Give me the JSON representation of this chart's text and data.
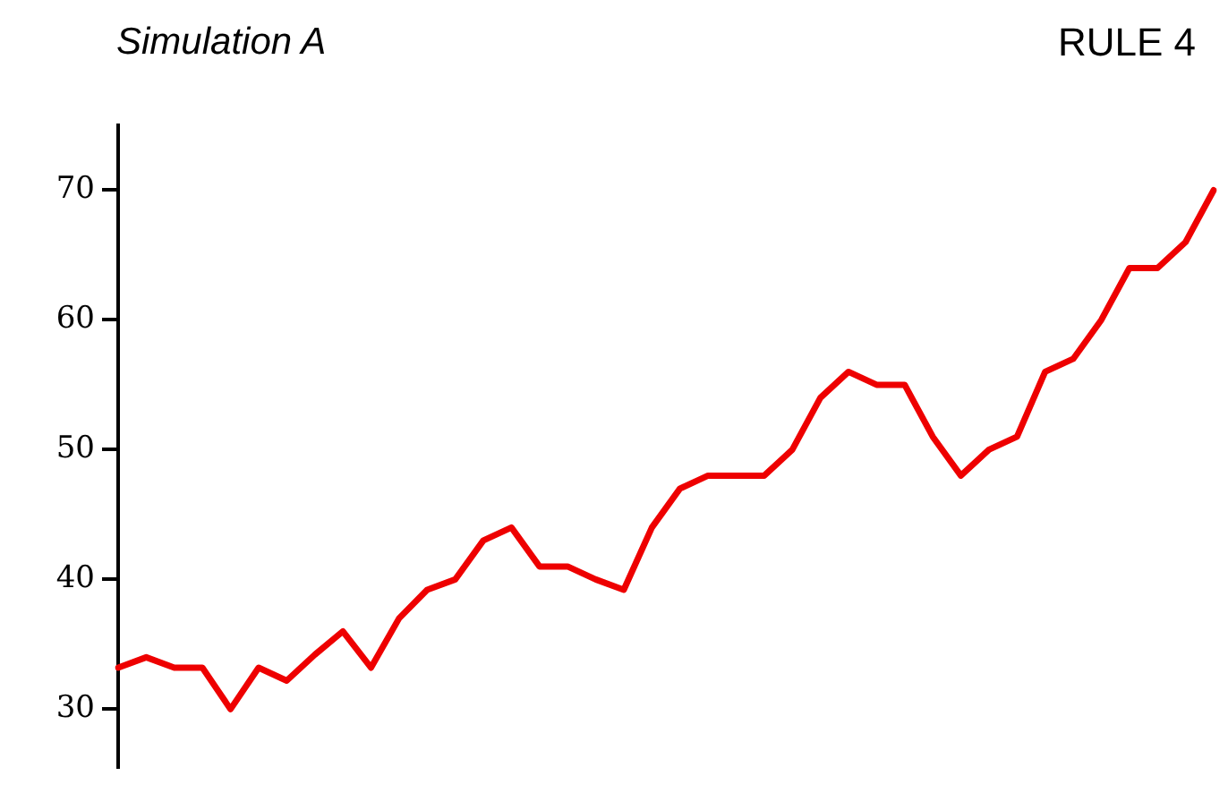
{
  "chart_data": {
    "type": "line",
    "title": "Simulation A",
    "subtitle": "RULE 4",
    "categories": [
      null,
      null,
      null,
      null,
      null,
      null,
      null,
      null,
      null,
      null,
      null,
      null,
      null,
      null,
      null,
      null,
      null,
      null,
      null,
      null,
      null,
      null,
      null,
      null,
      null,
      null,
      null,
      null,
      null,
      null,
      null,
      null,
      null,
      null,
      null,
      null,
      null,
      null,
      null,
      null
    ],
    "series": [
      {
        "color": "#ee0000",
        "values": [
          33.2,
          34,
          33.2,
          33.2,
          30,
          33.2,
          32.2,
          34.2,
          36,
          33.2,
          37,
          39.2,
          40,
          43,
          44,
          41,
          41,
          40,
          39.2,
          44,
          47,
          48,
          48,
          48,
          50,
          54,
          56,
          55,
          55,
          51,
          48,
          50,
          51,
          56,
          57,
          60,
          64,
          64,
          66,
          70
        ]
      }
    ],
    "ylim": [
      25.5,
      75
    ],
    "yticks": [
      30,
      40,
      50,
      60,
      70
    ],
    "grid": false,
    "legend": false,
    "tick_labels": "y",
    "marker": "none",
    "line_style": "solid"
  }
}
